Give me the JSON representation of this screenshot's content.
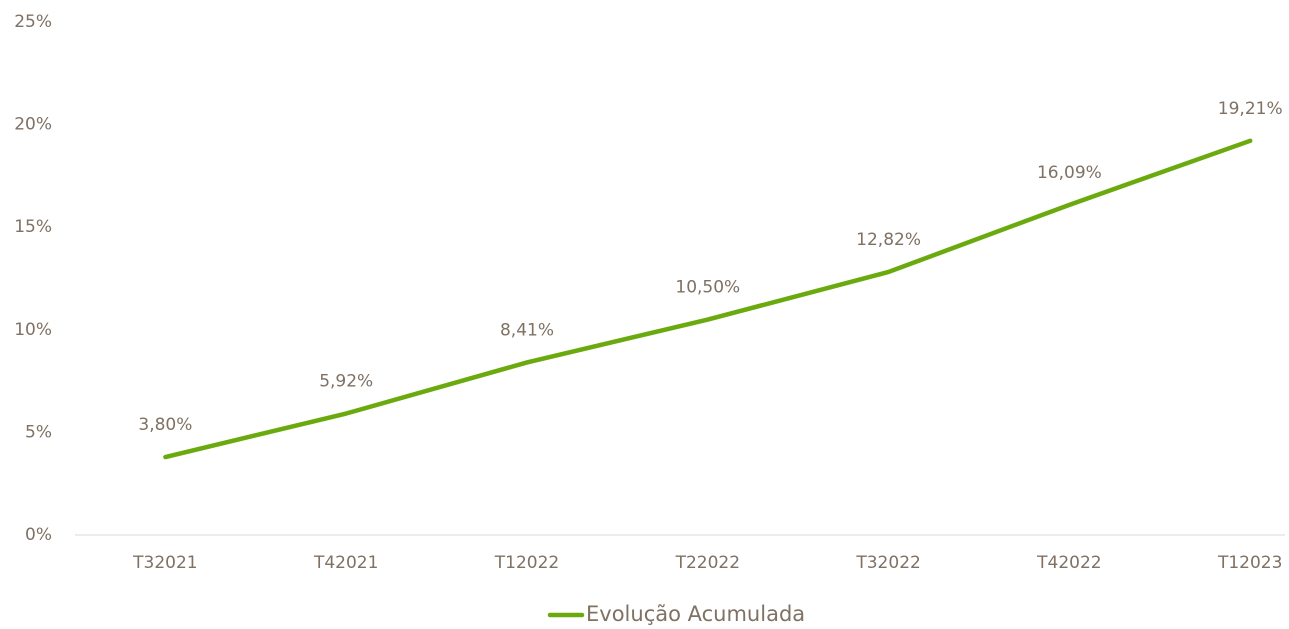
{
  "chart_data": {
    "type": "line",
    "categories": [
      "T32021",
      "T42021",
      "T12022",
      "T22022",
      "T32022",
      "T42022",
      "T12023"
    ],
    "series": [
      {
        "name": "Evolução Acumulada",
        "color": "#6aaa0e",
        "values": [
          3.8,
          5.92,
          8.41,
          10.5,
          12.82,
          16.09,
          19.21
        ],
        "value_labels": [
          "3,80%",
          "5,92%",
          "8,41%",
          "10,50%",
          "12,82%",
          "16,09%",
          "19,21%"
        ]
      }
    ],
    "ylim": [
      0,
      25
    ],
    "yticks": [
      {
        "value": 0,
        "label": "0%"
      },
      {
        "value": 5,
        "label": "5%"
      },
      {
        "value": 10,
        "label": "10%"
      },
      {
        "value": 15,
        "label": "15%"
      },
      {
        "value": 20,
        "label": "20%"
      },
      {
        "value": 25,
        "label": "25%"
      }
    ],
    "grid": false,
    "legend": "bottom"
  }
}
